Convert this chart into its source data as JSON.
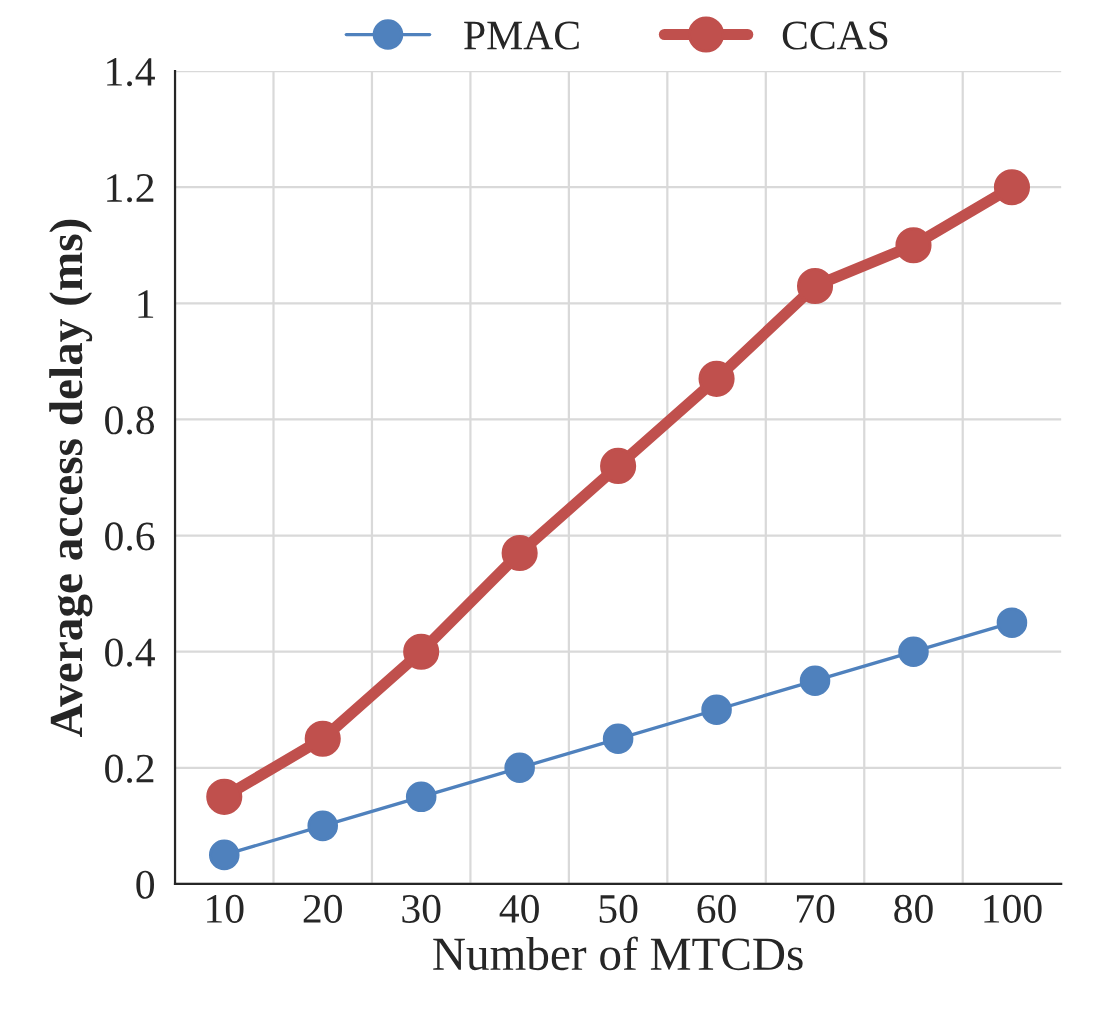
{
  "chart_data": {
    "type": "line",
    "xlabel": "Number of MTCDs",
    "ylabel": "Average access delay (ms)",
    "categories": [
      "10",
      "20",
      "30",
      "40",
      "50",
      "60",
      "70",
      "80",
      "100"
    ],
    "series": [
      {
        "name": "PMAC",
        "color": "#4f81bd",
        "values": [
          0.05,
          0.1,
          0.15,
          0.2,
          0.25,
          0.3,
          0.35,
          0.4,
          0.45
        ]
      },
      {
        "name": "CCAS",
        "color": "#c0504d",
        "values": [
          0.15,
          0.25,
          0.4,
          0.57,
          0.72,
          0.87,
          1.03,
          1.1,
          1.2
        ]
      }
    ],
    "ylim": [
      0,
      1.4
    ],
    "yticks": [
      0,
      0.2,
      0.4,
      0.6,
      0.8,
      1,
      1.2,
      1.4
    ],
    "grid": true,
    "legend": "top",
    "marker": "circle",
    "line_style": "solid"
  }
}
